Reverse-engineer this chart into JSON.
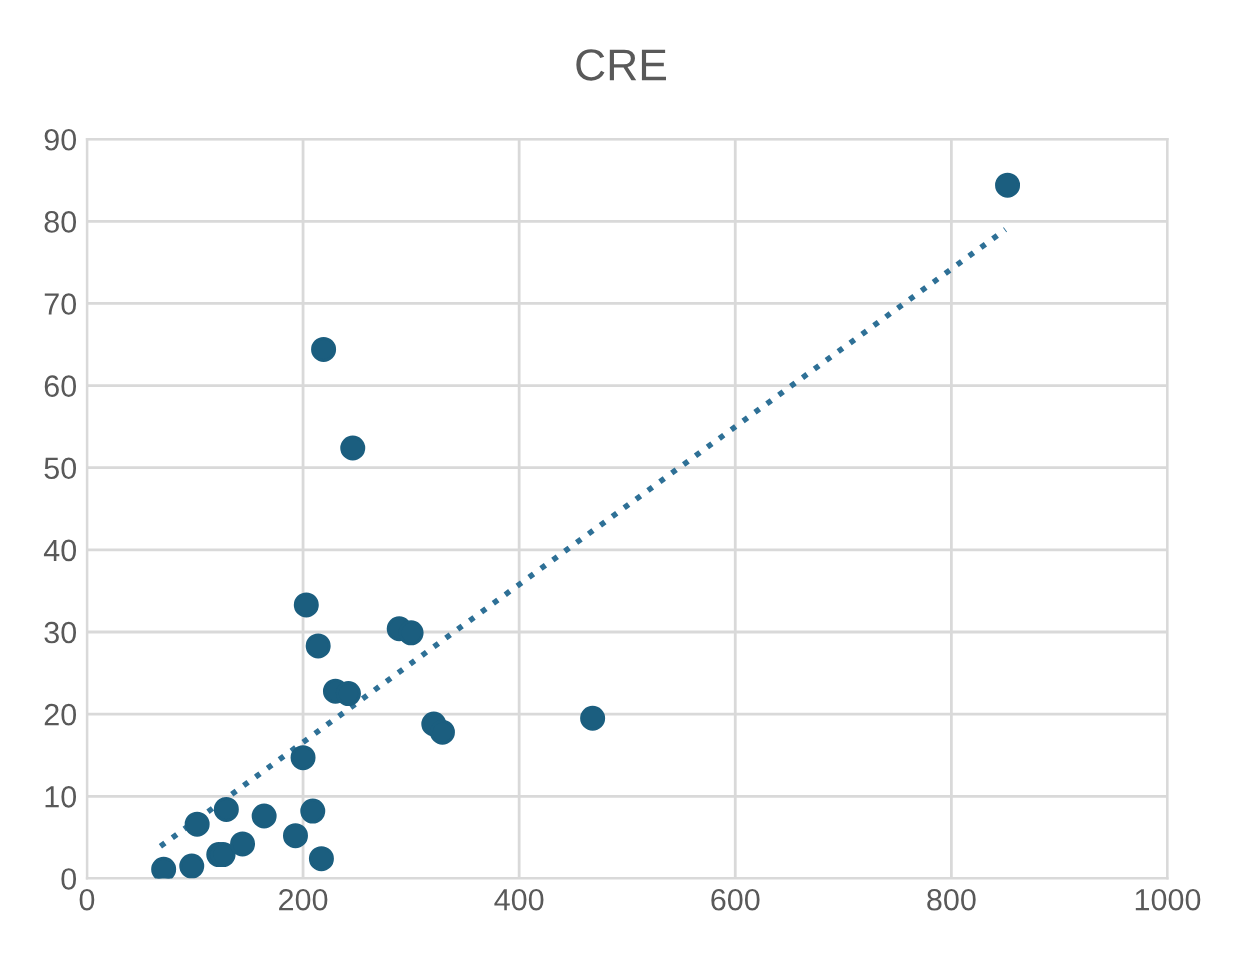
{
  "chart_data": {
    "type": "scatter",
    "title": "CRE",
    "series": [
      {
        "color": "#1b5e7f",
        "marker": "circle",
        "x": [
          71,
          97,
          122,
          126,
          144,
          102,
          129,
          164,
          193,
          209,
          217,
          200,
          230,
          242,
          203,
          214,
          289,
          300,
          321,
          329,
          468,
          219,
          246,
          852
        ],
        "values": [
          1.1,
          1.5,
          2.9,
          2.9,
          4.2,
          6.6,
          8.4,
          7.6,
          5.2,
          8.2,
          2.4,
          14.7,
          22.8,
          22.5,
          33.3,
          28.3,
          30.4,
          29.9,
          18.8,
          17.8,
          19.5,
          64.4,
          52.4,
          84.4
        ]
      },
      {
        "type": "line",
        "color": "#2e7096",
        "line_style": "dotted",
        "x": [
          68,
          850
        ],
        "values": [
          3.9,
          79.0
        ]
      }
    ],
    "xlim": [
      0,
      1000
    ],
    "xticks": [
      0,
      200,
      400,
      600,
      800,
      1000
    ],
    "ylim": [
      0,
      90
    ],
    "yticks": [
      0,
      10,
      20,
      30,
      40,
      50,
      60,
      70,
      80,
      90
    ],
    "grid": true,
    "legend": false
  }
}
